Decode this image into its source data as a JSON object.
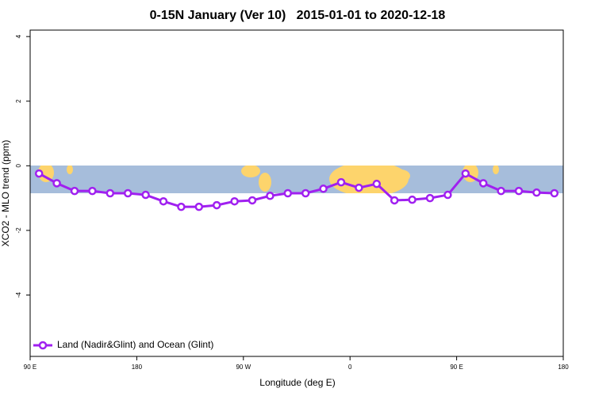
{
  "chart_data": {
    "type": "line",
    "title": "0-15N January (Ver 10)   2015-01-01 to 2020-12-18",
    "xlabel": "Longitude (deg E)",
    "ylabel": "XCO2 - MLO trend (ppm)",
    "xlim": [
      90,
      540
    ],
    "ylim": [
      -5.9,
      4.2
    ],
    "xticks": [
      {
        "value": 90,
        "label": "90 E"
      },
      180,
      {
        "value": 270,
        "label": "90 W"
      },
      {
        "value": 360,
        "label": "0"
      },
      {
        "value": 450,
        "label": "90 E"
      },
      {
        "value": 540,
        "label": "180"
      }
    ],
    "yticks": [
      4,
      2,
      0,
      -2,
      -4
    ],
    "legend": "bottom-left",
    "x": [
      97.5,
      112.5,
      127.5,
      142.5,
      157.5,
      172.5,
      187.5,
      202.5,
      217.5,
      232.5,
      247.5,
      262.5,
      277.5,
      292.5,
      307.5,
      322.5,
      337.5,
      352.5,
      367.5,
      382.5,
      397.5,
      412.5,
      427.5,
      442.5,
      457.5,
      472.5,
      487.5,
      502.5,
      517.5,
      532.5
    ],
    "series": [
      {
        "name": "Land (Nadir&Glint) and Ocean (Glint)",
        "color": "#a020f0",
        "values": [
          -0.24,
          -0.54,
          -0.78,
          -0.78,
          -0.85,
          -0.85,
          -0.9,
          -1.1,
          -1.27,
          -1.27,
          -1.22,
          -1.1,
          -1.07,
          -0.93,
          -0.85,
          -0.85,
          -0.71,
          -0.51,
          -0.68,
          -0.56,
          -1.07,
          -1.05,
          -1.0,
          -0.9,
          -0.24,
          -0.54,
          -0.78,
          -0.78,
          -0.83,
          -0.85
        ]
      }
    ]
  }
}
